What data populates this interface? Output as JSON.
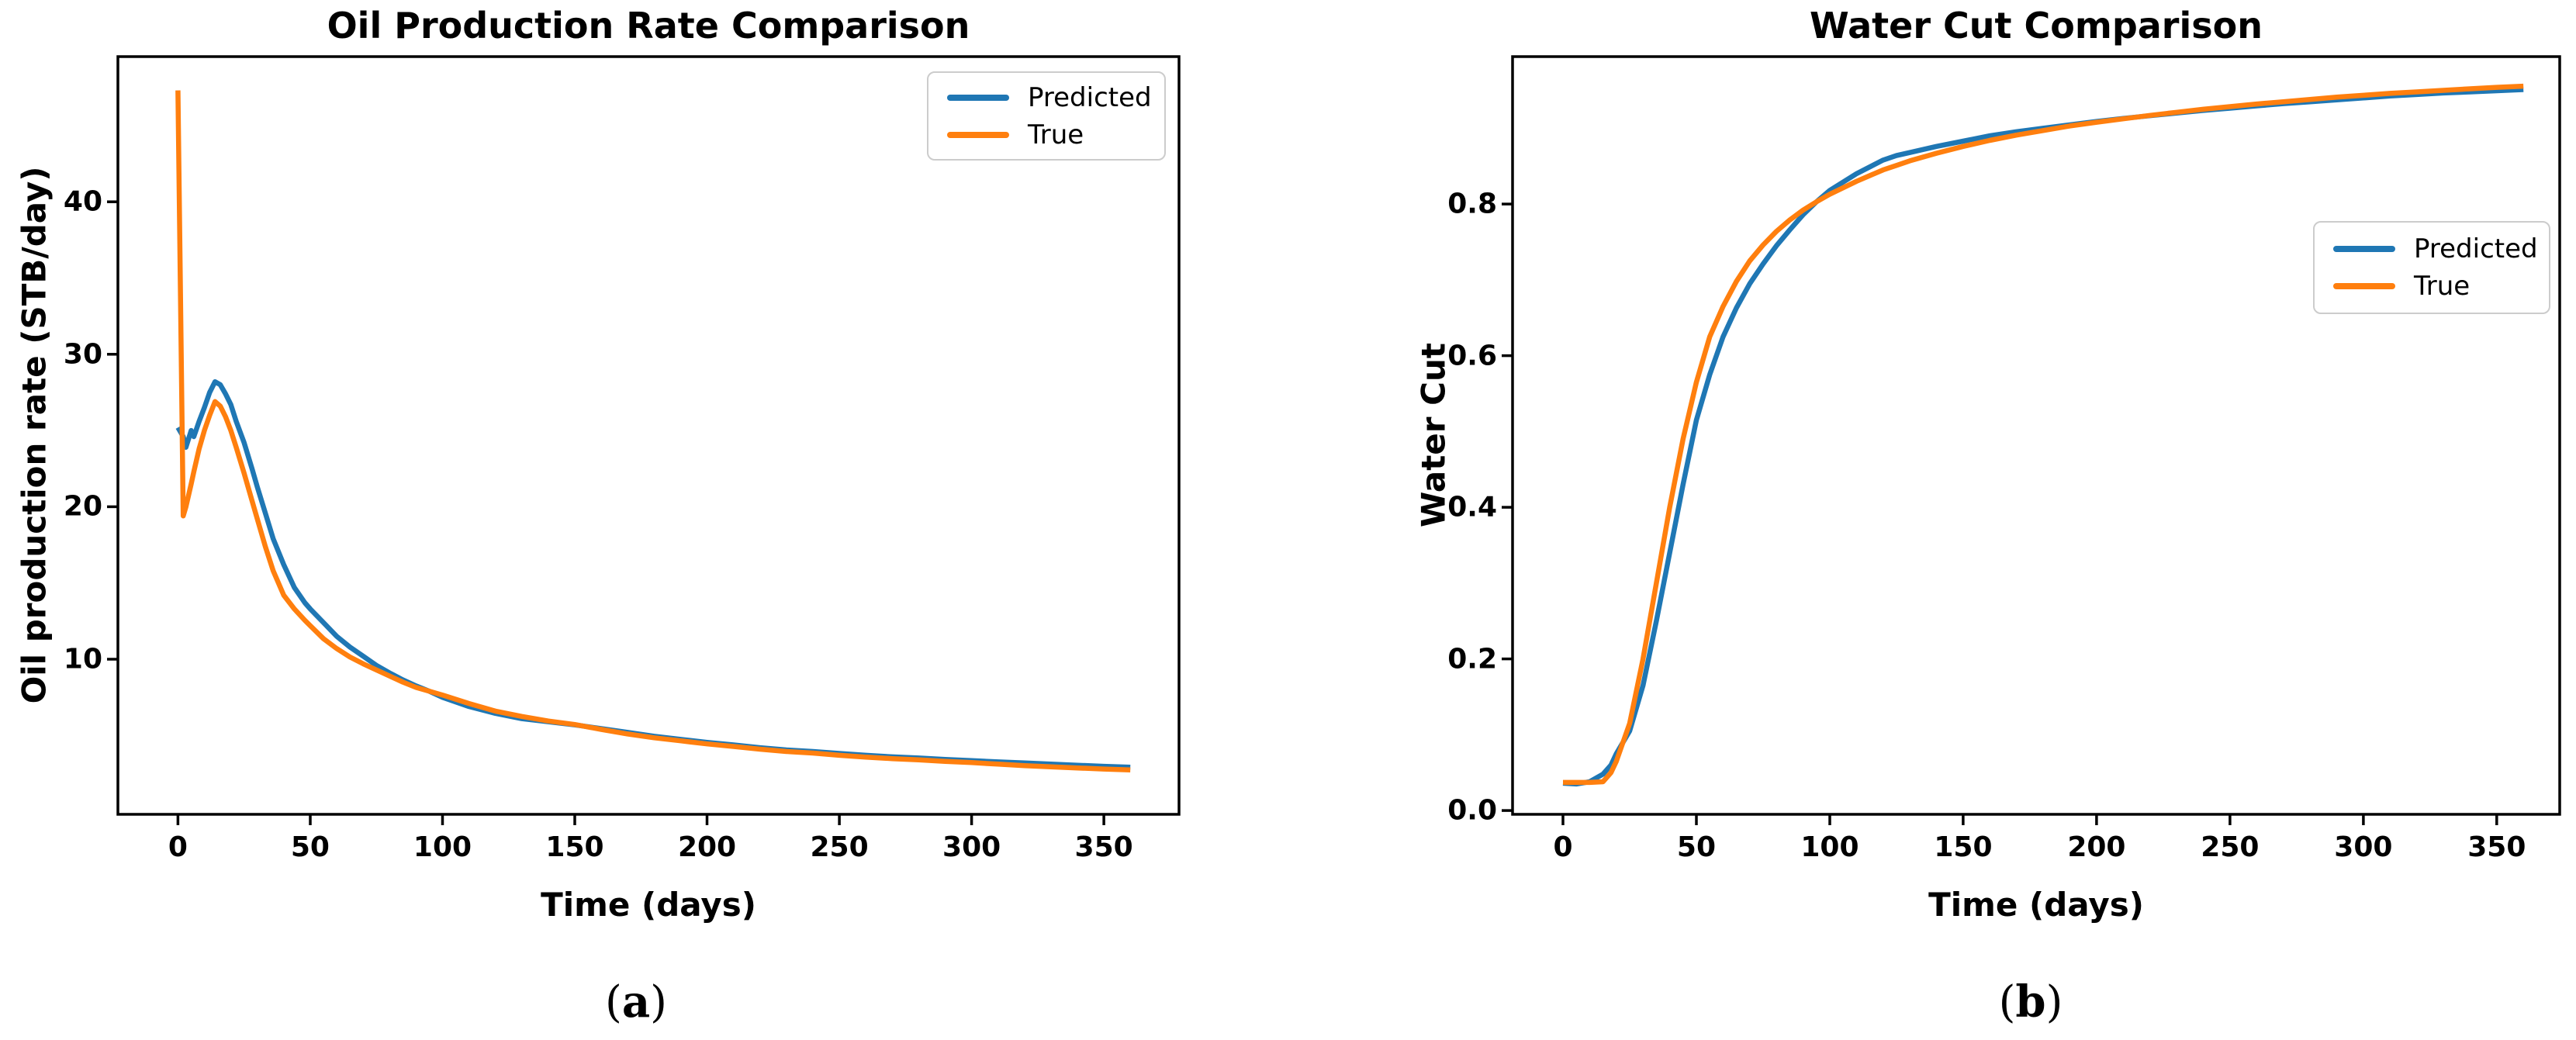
{
  "colors": {
    "predicted": "#1f77b4",
    "true_series": "#ff7f0e",
    "axis": "#000000",
    "legend_border": "#cccccc",
    "background": "#ffffff"
  },
  "chart_data": [
    {
      "type": "line",
      "title": "Oil Production Rate Comparison",
      "xlabel": "Time (days)",
      "ylabel": "Oil production rate (STB/day)",
      "caption_parts": {
        "open": "(",
        "letter": "a",
        "close": ")"
      },
      "legend_position": "top-right",
      "grid": false,
      "xlim": [
        -22.7,
        378.4
      ],
      "ylim": [
        -0.17,
        49.52
      ],
      "x_ticks": [
        "0",
        "50",
        "100",
        "150",
        "200",
        "250",
        "300",
        "350"
      ],
      "y_ticks": [
        "10",
        "20",
        "30",
        "40"
      ],
      "x": [
        0,
        2,
        3,
        5,
        6,
        8,
        10,
        12,
        14,
        16,
        18,
        20,
        22,
        25,
        28,
        30,
        33,
        36,
        40,
        44,
        48,
        50,
        55,
        60,
        65,
        70,
        75,
        80,
        85,
        90,
        95,
        100,
        110,
        120,
        130,
        140,
        150,
        160,
        170,
        180,
        190,
        200,
        210,
        220,
        230,
        240,
        250,
        260,
        270,
        280,
        290,
        300,
        310,
        320,
        330,
        340,
        350,
        360
      ],
      "series": [
        {
          "name": "Predicted",
          "color_key": "predicted",
          "values": [
            25.2,
            24.6,
            23.9,
            25.0,
            24.6,
            25.6,
            26.5,
            27.5,
            28.2,
            28.0,
            27.4,
            26.7,
            25.6,
            24.2,
            22.5,
            21.3,
            19.6,
            17.9,
            16.2,
            14.7,
            13.7,
            13.3,
            12.4,
            11.5,
            10.8,
            10.2,
            9.6,
            9.1,
            8.65,
            8.25,
            7.9,
            7.5,
            6.9,
            6.45,
            6.1,
            5.9,
            5.7,
            5.45,
            5.2,
            4.95,
            4.75,
            4.55,
            4.38,
            4.2,
            4.05,
            3.95,
            3.82,
            3.7,
            3.6,
            3.52,
            3.43,
            3.35,
            3.27,
            3.2,
            3.12,
            3.05,
            2.98,
            2.92
          ]
        },
        {
          "name": "True",
          "color_key": "true_series",
          "values": [
            47.3,
            19.4,
            20.0,
            21.5,
            22.3,
            23.8,
            25.0,
            26.0,
            26.9,
            26.6,
            25.9,
            25.0,
            23.9,
            22.2,
            20.4,
            19.2,
            17.4,
            15.8,
            14.2,
            13.3,
            12.55,
            12.2,
            11.35,
            10.7,
            10.15,
            9.7,
            9.3,
            8.9,
            8.5,
            8.15,
            7.9,
            7.65,
            7.1,
            6.6,
            6.25,
            5.95,
            5.72,
            5.4,
            5.1,
            4.85,
            4.65,
            4.45,
            4.28,
            4.1,
            3.95,
            3.85,
            3.7,
            3.58,
            3.48,
            3.4,
            3.3,
            3.22,
            3.12,
            3.02,
            2.95,
            2.87,
            2.8,
            2.74
          ]
        }
      ]
    },
    {
      "type": "line",
      "title": "Water Cut Comparison",
      "xlabel": "Time (days)",
      "ylabel": "Water Cut",
      "caption_parts": {
        "open": "(",
        "letter": "b",
        "close": ")"
      },
      "legend_position": "center-right",
      "grid": false,
      "xlim": [
        -18.9,
        373.6
      ],
      "ylim": [
        -0.005,
        0.9945
      ],
      "x_ticks": [
        "0",
        "50",
        "100",
        "150",
        "200",
        "250",
        "300",
        "350"
      ],
      "y_ticks": [
        "0.0",
        "0.2",
        "0.4",
        "0.6",
        "0.8"
      ],
      "x": [
        0,
        5,
        10,
        15,
        18,
        20,
        25,
        30,
        35,
        40,
        45,
        50,
        55,
        60,
        65,
        70,
        75,
        80,
        85,
        90,
        95,
        100,
        110,
        120,
        125,
        130,
        140,
        150,
        160,
        170,
        180,
        190,
        200,
        210,
        220,
        230,
        240,
        250,
        260,
        270,
        280,
        290,
        300,
        310,
        320,
        330,
        340,
        350,
        360
      ],
      "series": [
        {
          "name": "Predicted",
          "color_key": "predicted",
          "values": [
            0.036,
            0.035,
            0.038,
            0.048,
            0.06,
            0.075,
            0.105,
            0.165,
            0.25,
            0.34,
            0.43,
            0.515,
            0.575,
            0.625,
            0.663,
            0.695,
            0.721,
            0.745,
            0.766,
            0.786,
            0.803,
            0.818,
            0.84,
            0.858,
            0.864,
            0.868,
            0.876,
            0.883,
            0.89,
            0.8955,
            0.9,
            0.9045,
            0.909,
            0.913,
            0.9165,
            0.92,
            0.9235,
            0.9265,
            0.9295,
            0.9325,
            0.935,
            0.9375,
            0.94,
            0.9425,
            0.9445,
            0.9465,
            0.948,
            0.9495,
            0.951
          ]
        },
        {
          "name": "True",
          "color_key": "true_series",
          "values": [
            0.037,
            0.037,
            0.037,
            0.038,
            0.05,
            0.065,
            0.115,
            0.2,
            0.3,
            0.4,
            0.49,
            0.565,
            0.625,
            0.665,
            0.698,
            0.725,
            0.746,
            0.764,
            0.779,
            0.792,
            0.803,
            0.813,
            0.83,
            0.845,
            0.851,
            0.857,
            0.867,
            0.876,
            0.884,
            0.891,
            0.897,
            0.903,
            0.908,
            0.9125,
            0.917,
            0.921,
            0.925,
            0.9285,
            0.932,
            0.935,
            0.938,
            0.941,
            0.9435,
            0.946,
            0.948,
            0.95,
            0.952,
            0.954,
            0.9555
          ]
        }
      ]
    }
  ]
}
